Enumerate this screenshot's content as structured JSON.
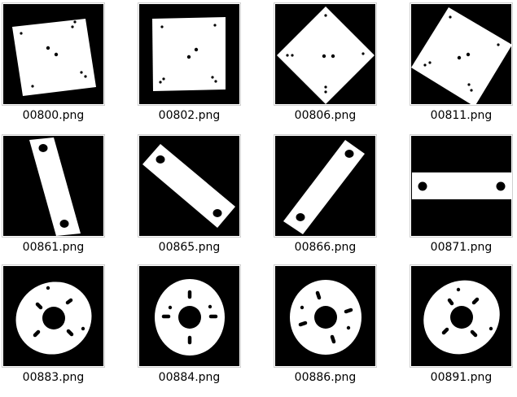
{
  "gallery": {
    "items": [
      {
        "file": "00800.png",
        "shape": "plate-square-4-holes"
      },
      {
        "file": "00802.png",
        "shape": "plate-square-4-holes"
      },
      {
        "file": "00806.png",
        "shape": "plate-square-4-holes"
      },
      {
        "file": "00811.png",
        "shape": "plate-square-4-holes"
      },
      {
        "file": "00861.png",
        "shape": "bar-2-holes"
      },
      {
        "file": "00865.png",
        "shape": "bar-2-holes"
      },
      {
        "file": "00866.png",
        "shape": "bar-2-holes"
      },
      {
        "file": "00871.png",
        "shape": "bar-2-holes"
      },
      {
        "file": "00883.png",
        "shape": "disc-with-slots"
      },
      {
        "file": "00884.png",
        "shape": "disc-with-slots"
      },
      {
        "file": "00886.png",
        "shape": "disc-with-slots"
      },
      {
        "file": "00891.png",
        "shape": "disc-with-slots"
      }
    ]
  },
  "colors": {
    "background": "#000000",
    "part": "#ffffff",
    "frame_border": "#cfcfcf",
    "caption": "#000000"
  }
}
